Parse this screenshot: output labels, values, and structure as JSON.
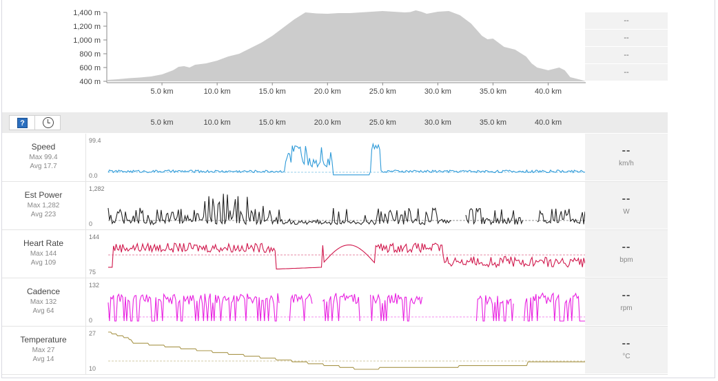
{
  "elevation": {
    "unit": "m",
    "y_ticks": [
      "1,400 m",
      "1,200 m",
      "1,000 m",
      "800 m",
      "600 m",
      "400 m"
    ],
    "y_range": [
      400,
      1400
    ],
    "x_ticks": [
      "5.0 km",
      "10.0 km",
      "15.0 km",
      "20.0 km",
      "25.0 km",
      "30.0 km",
      "35.0 km",
      "40.0 km"
    ],
    "x_range_km": [
      0,
      43.4
    ],
    "fill_color": "#cccccc",
    "profile_km": [
      0,
      1,
      2,
      3,
      4,
      5,
      6,
      6.5,
      7,
      7.5,
      8,
      9,
      10,
      11,
      12,
      13,
      14,
      15,
      16,
      17,
      18,
      19,
      20,
      21,
      22,
      23,
      24,
      25,
      26,
      27,
      27.5,
      28,
      28.5,
      29,
      30,
      31,
      32,
      33,
      34,
      34.5,
      35,
      36,
      37,
      38,
      38.5,
      39,
      40,
      40.5,
      41,
      41.5,
      42,
      43,
      43.4
    ],
    "profile_m": [
      420,
      430,
      445,
      455,
      470,
      500,
      560,
      610,
      620,
      600,
      640,
      660,
      700,
      760,
      800,
      880,
      960,
      1060,
      1180,
      1300,
      1400,
      1385,
      1380,
      1390,
      1390,
      1400,
      1410,
      1420,
      1410,
      1400,
      1405,
      1430,
      1410,
      1380,
      1410,
      1420,
      1360,
      1240,
      1060,
      1010,
      1020,
      900,
      860,
      760,
      660,
      600,
      560,
      580,
      600,
      560,
      460,
      420,
      400
    ]
  },
  "side_panel": [
    "--",
    "--",
    "--",
    "--"
  ],
  "toolbar": {
    "help_label": "?",
    "axis_ticks": [
      "5.0 km",
      "10.0 km",
      "15.0 km",
      "20.0 km",
      "25.0 km",
      "30.0 km",
      "35.0 km",
      "40.0 km"
    ]
  },
  "metrics": [
    {
      "name": "Speed",
      "max": "Max 99.4",
      "avg": "Avg 17.7",
      "scale_max": "99.4",
      "scale_min": "0.0",
      "value": "--",
      "unit": "km/h",
      "color": "#2e9ad8",
      "key": "speed"
    },
    {
      "name": "Est Power",
      "max": "Max 1,282",
      "avg": "Avg 223",
      "scale_max": "1,282",
      "scale_min": "0",
      "value": "--",
      "unit": "W",
      "color": "#222222",
      "key": "power"
    },
    {
      "name": "Heart Rate",
      "max": "Max 144",
      "avg": "Avg 109",
      "scale_max": "144",
      "scale_min": "75",
      "value": "--",
      "unit": "bpm",
      "color": "#d0154a",
      "key": "hr"
    },
    {
      "name": "Cadence",
      "max": "Max 132",
      "avg": "Avg 64",
      "scale_max": "132",
      "scale_min": "0",
      "value": "--",
      "unit": "rpm",
      "color": "#e81ee0",
      "key": "cadence"
    },
    {
      "name": "Temperature",
      "max": "Max 27",
      "avg": "Avg 14",
      "scale_max": "27",
      "scale_min": "10",
      "value": "--",
      "unit": "°C",
      "color": "#a8954a",
      "key": "temp"
    }
  ]
}
